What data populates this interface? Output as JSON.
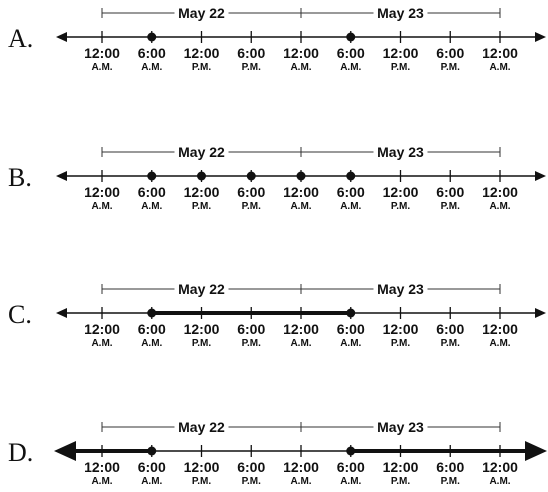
{
  "ticks": [
    {
      "time": "12:00",
      "period": "A.M."
    },
    {
      "time": "6:00",
      "period": "A.M."
    },
    {
      "time": "12:00",
      "period": "P.M."
    },
    {
      "time": "6:00",
      "period": "P.M."
    },
    {
      "time": "12:00",
      "period": "A.M."
    },
    {
      "time": "6:00",
      "period": "A.M."
    },
    {
      "time": "12:00",
      "period": "P.M."
    },
    {
      "time": "6:00",
      "period": "P.M."
    },
    {
      "time": "12:00",
      "period": "A.M."
    }
  ],
  "date_ranges": [
    {
      "label": "May 22",
      "start_tick": 0,
      "end_tick": 4
    },
    {
      "label": "May 23",
      "start_tick": 4,
      "end_tick": 8
    }
  ],
  "options": [
    {
      "letter": "A.",
      "points": [
        1,
        5
      ],
      "segments": [],
      "rays": []
    },
    {
      "letter": "B.",
      "points": [
        1,
        2,
        3,
        4,
        5
      ],
      "segments": [],
      "rays": []
    },
    {
      "letter": "C.",
      "points": [
        1,
        5
      ],
      "segments": [
        [
          1,
          5
        ]
      ],
      "rays": []
    },
    {
      "letter": "D.",
      "points": [
        1,
        5
      ],
      "segments": [],
      "rays": [
        {
          "from": 1,
          "dir": "left"
        },
        {
          "from": 5,
          "dir": "right"
        }
      ]
    }
  ]
}
